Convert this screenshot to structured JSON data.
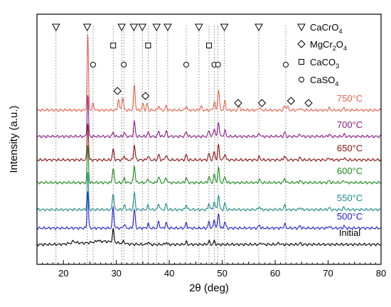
{
  "chart_data": {
    "type": "line",
    "xlabel": "2θ (deg)",
    "ylabel": "Intensity (a.u.)",
    "xlim": [
      15,
      80
    ],
    "x_ticks": [
      20,
      30,
      40,
      50,
      60,
      70,
      80
    ],
    "series": [
      {
        "name": "Initial",
        "color": "#000000",
        "baseline": 0,
        "peaks": [
          [
            29.4,
            6
          ],
          [
            31.4,
            1.2
          ],
          [
            36.0,
            1.2
          ],
          [
            39.4,
            1.0
          ],
          [
            43.2,
            1.2
          ],
          [
            47.5,
            1.5
          ],
          [
            48.5,
            1.5
          ],
          [
            57.4,
            0.8
          ],
          [
            60.7,
            0.8
          ],
          [
            64.7,
            0.6
          ],
          [
            21.9,
            0.8
          ],
          [
            26.5,
            0.8
          ]
        ]
      },
      {
        "name": "500°C",
        "color": "#1f1fd6",
        "baseline": 1,
        "peaks": [
          [
            24.6,
            18
          ],
          [
            29.4,
            10
          ],
          [
            31.5,
            2
          ],
          [
            33.4,
            9
          ],
          [
            36.0,
            2
          ],
          [
            38.0,
            3
          ],
          [
            39.4,
            2.5
          ],
          [
            43.2,
            2.5
          ],
          [
            47.5,
            3
          ],
          [
            48.5,
            4
          ],
          [
            49.3,
            7
          ],
          [
            50.5,
            3
          ],
          [
            57.0,
            1.5
          ],
          [
            61.8,
            2
          ],
          [
            64.7,
            1
          ],
          [
            70.2,
            1
          ],
          [
            73.0,
            1
          ]
        ]
      },
      {
        "name": "550°C",
        "color": "#1e8a8a",
        "baseline": 2,
        "peaks": [
          [
            24.6,
            18
          ],
          [
            29.4,
            8
          ],
          [
            31.5,
            2
          ],
          [
            33.4,
            8
          ],
          [
            36.0,
            2
          ],
          [
            38.0,
            3
          ],
          [
            39.4,
            2.5
          ],
          [
            43.2,
            2.5
          ],
          [
            47.5,
            3
          ],
          [
            48.5,
            4
          ],
          [
            49.3,
            7
          ],
          [
            50.5,
            3
          ],
          [
            57.0,
            1.5
          ],
          [
            61.8,
            2
          ],
          [
            64.7,
            1
          ],
          [
            70.2,
            1
          ],
          [
            73.0,
            1
          ]
        ]
      },
      {
        "name": "600°C",
        "color": "#1c8c1c",
        "baseline": 3,
        "peaks": [
          [
            24.6,
            18
          ],
          [
            29.4,
            7
          ],
          [
            31.5,
            2
          ],
          [
            33.4,
            8
          ],
          [
            36.0,
            2
          ],
          [
            38.0,
            3
          ],
          [
            39.4,
            2.5
          ],
          [
            43.2,
            2.5
          ],
          [
            47.5,
            3
          ],
          [
            48.5,
            4
          ],
          [
            49.3,
            7
          ],
          [
            50.5,
            3
          ],
          [
            57.0,
            1.5
          ],
          [
            61.8,
            2
          ],
          [
            64.7,
            1
          ],
          [
            70.2,
            1
          ],
          [
            73.0,
            1
          ]
        ]
      },
      {
        "name": "650°C",
        "color": "#8a1010",
        "baseline": 4,
        "peaks": [
          [
            24.6,
            18
          ],
          [
            29.4,
            5
          ],
          [
            31.5,
            2
          ],
          [
            33.4,
            7
          ],
          [
            36.0,
            2
          ],
          [
            38.0,
            2.5
          ],
          [
            39.4,
            2.5
          ],
          [
            43.2,
            2.5
          ],
          [
            47.5,
            3
          ],
          [
            48.5,
            4
          ],
          [
            49.3,
            7
          ],
          [
            50.5,
            3
          ],
          [
            57.0,
            1.5
          ],
          [
            61.8,
            2
          ],
          [
            64.7,
            1
          ],
          [
            70.2,
            1
          ],
          [
            73.0,
            1
          ]
        ]
      },
      {
        "name": "700°C",
        "color": "#8a1a8a",
        "baseline": 5,
        "peaks": [
          [
            24.6,
            20
          ],
          [
            29.4,
            2
          ],
          [
            31.5,
            2
          ],
          [
            33.4,
            7
          ],
          [
            36.0,
            2
          ],
          [
            38.0,
            2.5
          ],
          [
            39.4,
            2.5
          ],
          [
            43.2,
            2.5
          ],
          [
            47.5,
            3
          ],
          [
            48.5,
            4
          ],
          [
            49.3,
            7
          ],
          [
            50.5,
            3
          ],
          [
            57.0,
            1.5
          ],
          [
            61.8,
            2
          ],
          [
            64.7,
            1
          ],
          [
            70.2,
            1
          ],
          [
            73.0,
            1
          ]
        ]
      },
      {
        "name": "750°C",
        "color": "#e8604a",
        "baseline": 6,
        "peaks": [
          [
            24.6,
            36
          ],
          [
            25.6,
            3
          ],
          [
            30.4,
            5
          ],
          [
            31.2,
            6
          ],
          [
            33.4,
            12
          ],
          [
            35.0,
            3
          ],
          [
            35.8,
            3
          ],
          [
            38.0,
            2
          ],
          [
            39.4,
            2
          ],
          [
            43.2,
            2
          ],
          [
            46.0,
            2
          ],
          [
            48.5,
            4
          ],
          [
            49.3,
            10
          ],
          [
            50.5,
            4
          ],
          [
            53.2,
            2
          ],
          [
            57.0,
            1.5
          ],
          [
            61.8,
            2
          ],
          [
            62.3,
            2
          ],
          [
            64.7,
            1
          ],
          [
            70.2,
            1
          ],
          [
            73.0,
            1
          ]
        ]
      }
    ],
    "reference_lines": [
      18.6,
      24.5,
      31.0,
      33.3,
      34.9,
      37.6,
      39.7,
      45.6,
      50.4,
      56.9,
      62.0,
      29.4,
      36.0,
      47.5,
      25.6,
      31.4,
      43.2,
      48.5,
      49.2
    ],
    "markers": [
      {
        "phase": "CaCrO4",
        "symbol": "triangle-down",
        "x": [
          18.6,
          24.5,
          31.0,
          33.3,
          34.9,
          37.6,
          39.7,
          45.6,
          50.4,
          56.9
        ]
      },
      {
        "phase": "CaCO3",
        "symbol": "square",
        "x": [
          29.4,
          36.0,
          47.5
        ]
      },
      {
        "phase": "CaSO4",
        "symbol": "circle",
        "x": [
          25.6,
          31.4,
          43.2,
          48.5,
          49.2,
          62.0
        ]
      },
      {
        "phase": "MgCr2O4",
        "symbol": "diamond",
        "x": [
          30.2,
          35.5,
          53.0,
          57.5,
          63.0,
          66.3
        ]
      }
    ],
    "legend": {
      "position": "top-right",
      "items": [
        {
          "symbol": "triangle-down",
          "prefix": "CaCrO",
          "sub": "4",
          "mid": "",
          "sub2": ""
        },
        {
          "symbol": "diamond",
          "prefix": "MgCr",
          "sub": "2",
          "mid": "O",
          "sub2": "4"
        },
        {
          "symbol": "square",
          "prefix": "CaCO",
          "sub": "3",
          "mid": "",
          "sub2": ""
        },
        {
          "symbol": "circle",
          "prefix": "CaSO",
          "sub": "4",
          "mid": "",
          "sub2": ""
        }
      ]
    },
    "grid": false
  }
}
